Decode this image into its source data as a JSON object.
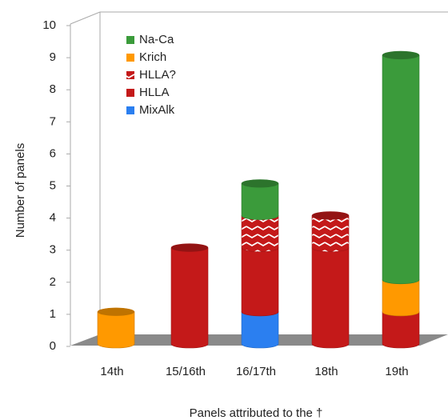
{
  "chart_data": {
    "type": "bar3d",
    "stacked": true,
    "x_label": "Panels attributed to the †",
    "y_label": "Number of panels",
    "categories": [
      "14th",
      "15/16th",
      "16/17th",
      "18th",
      "19th"
    ],
    "series": [
      {
        "name": "MixAlk",
        "color": "#2b7ff0",
        "values": [
          0,
          0,
          1,
          0,
          0
        ]
      },
      {
        "name": "HLLA",
        "color": "#c41919",
        "values": [
          0,
          3,
          2,
          3,
          1
        ]
      },
      {
        "name": "HLLA?",
        "color": "#c41919",
        "hatch": true,
        "values": [
          0,
          0,
          1,
          1,
          0
        ]
      },
      {
        "name": "Krich",
        "color": "#ff9900",
        "values": [
          1,
          0,
          0,
          0,
          1
        ]
      },
      {
        "name": "Na-Ca",
        "color": "#3b9b3b",
        "values": [
          0,
          0,
          1,
          0,
          7
        ]
      }
    ],
    "ylim": [
      0,
      10
    ],
    "yticks": [
      0,
      1,
      2,
      3,
      4,
      5,
      6,
      7,
      8,
      9,
      10
    ]
  }
}
